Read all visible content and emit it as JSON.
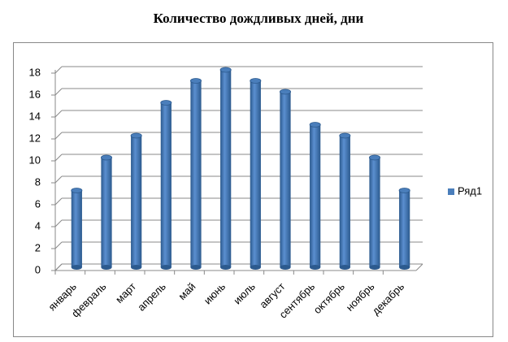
{
  "chart_data": {
    "type": "bar",
    "title": "Количество дождливых дней, дни",
    "categories": [
      "январь",
      "февраль",
      "март",
      "апрель",
      "май",
      "июнь",
      "июль",
      "август",
      "сентябрь",
      "октябрь",
      "ноябрь",
      "декабрь"
    ],
    "series": [
      {
        "name": "Ряд1",
        "color": "#4a7ebb",
        "values": [
          7,
          10,
          12,
          15,
          17,
          18,
          17,
          16,
          13,
          12,
          10,
          7
        ]
      }
    ],
    "ylim": [
      0,
      18
    ],
    "yticks": [
      0,
      2,
      4,
      6,
      8,
      10,
      12,
      14,
      16,
      18
    ],
    "grid": true,
    "legend": "right"
  }
}
